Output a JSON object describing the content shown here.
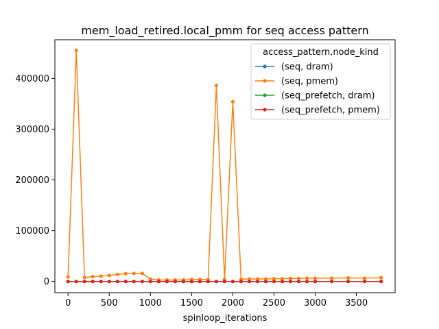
{
  "chart_data": {
    "type": "line",
    "title": "mem_load_retired.local_pmm for seq access pattern",
    "xlabel": "spinloop_iterations",
    "ylabel": "",
    "xlim": [
      -160,
      3970
    ],
    "ylim": [
      -22000,
      476000
    ],
    "xticks": [
      0,
      500,
      1000,
      1500,
      2000,
      2500,
      3000,
      3500
    ],
    "yticks": [
      0,
      100000,
      200000,
      300000,
      400000
    ],
    "grid": false,
    "legend": {
      "title": "access_pattern,node_kind",
      "placement": "top-right"
    },
    "series": [
      {
        "name": "(seq, dram)",
        "color": "#1f77b4",
        "x": [
          0,
          100,
          200,
          300,
          400,
          500,
          600,
          700,
          800,
          900,
          1000,
          1100,
          1200,
          1300,
          1400,
          1500,
          1600,
          1700,
          1800,
          1900,
          2000,
          2100,
          2200,
          2300,
          2400,
          2500,
          2600,
          2700,
          2800,
          2900,
          3000,
          3200,
          3400,
          3600,
          3800
        ],
        "y": [
          0,
          0,
          0,
          0,
          0,
          0,
          0,
          0,
          0,
          0,
          0,
          0,
          0,
          0,
          0,
          0,
          0,
          0,
          0,
          0,
          0,
          0,
          0,
          0,
          0,
          0,
          0,
          0,
          0,
          0,
          0,
          0,
          0,
          0,
          0
        ]
      },
      {
        "name": "(seq, pmem)",
        "color": "#ff7f0e",
        "x": [
          0,
          100,
          200,
          300,
          400,
          500,
          600,
          700,
          800,
          900,
          1000,
          1100,
          1200,
          1300,
          1400,
          1500,
          1600,
          1700,
          1800,
          1900,
          2000,
          2100,
          2200,
          2300,
          2400,
          2500,
          2600,
          2700,
          2800,
          2900,
          3000,
          3200,
          3400,
          3600,
          3800
        ],
        "y": [
          9000,
          455000,
          8000,
          9500,
          10500,
          12000,
          14000,
          15500,
          16000,
          16000,
          5000,
          3000,
          3000,
          3000,
          3000,
          4000,
          4000,
          3500,
          386000,
          4000,
          354000,
          4500,
          5000,
          5000,
          5000,
          5500,
          5500,
          6000,
          6000,
          6500,
          6500,
          6500,
          7000,
          6500,
          7500
        ]
      },
      {
        "name": "(seq_prefetch, dram)",
        "color": "#2ca02c",
        "x": [
          0,
          100,
          200,
          300,
          400,
          500,
          600,
          700,
          800,
          900,
          1000,
          1100,
          1200,
          1300,
          1400,
          1500,
          1600,
          1700,
          1800,
          1900,
          2000,
          2100,
          2200,
          2300,
          2400,
          2500,
          2600,
          2700,
          2800,
          2900,
          3000,
          3200,
          3400,
          3600,
          3800
        ],
        "y": [
          0,
          0,
          0,
          0,
          0,
          0,
          0,
          0,
          0,
          0,
          0,
          0,
          0,
          0,
          0,
          0,
          0,
          0,
          0,
          0,
          0,
          0,
          0,
          0,
          0,
          0,
          0,
          0,
          0,
          0,
          0,
          0,
          0,
          0,
          0
        ]
      },
      {
        "name": "(seq_prefetch, pmem)",
        "color": "#d62728",
        "x": [
          0,
          100,
          200,
          300,
          400,
          500,
          600,
          700,
          800,
          900,
          1000,
          1100,
          1200,
          1300,
          1400,
          1500,
          1600,
          1700,
          1800,
          1900,
          2000,
          2100,
          2200,
          2300,
          2400,
          2500,
          2600,
          2700,
          2800,
          2900,
          3000,
          3200,
          3400,
          3600,
          3800
        ],
        "y": [
          0,
          0,
          0,
          0,
          0,
          0,
          0,
          0,
          0,
          0,
          0,
          0,
          0,
          0,
          0,
          0,
          0,
          0,
          0,
          0,
          0,
          0,
          0,
          0,
          0,
          0,
          0,
          0,
          0,
          0,
          0,
          0,
          0,
          0,
          0
        ]
      }
    ]
  }
}
